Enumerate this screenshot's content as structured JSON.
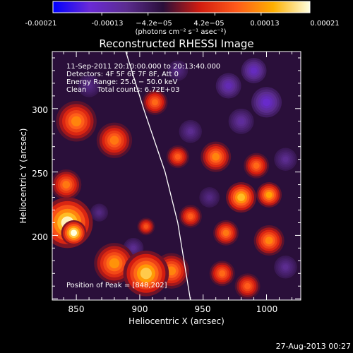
{
  "colors": {
    "background": "#000000",
    "foreground": "#ffffff",
    "limb": "#ffffff",
    "colormap": [
      "#0000ff",
      "#6a2ad6",
      "#5b2c8f",
      "#2a0f3a",
      "#d21c10",
      "#ff5a1a",
      "#ffb000",
      "#ffffe0"
    ]
  },
  "colorbar": {
    "ticks": [
      "-0.00021",
      "-0.00013",
      "−4.2e−05",
      "4.2e−05",
      "0.00013",
      "0.00021"
    ],
    "unit_label": "(photons cm⁻² s⁻¹ asec⁻²)"
  },
  "footer": {
    "timestamp": "27-Aug-2013 00:27"
  },
  "chart_data": {
    "type": "heatmap",
    "title": "Reconstructed RHESSI Image",
    "xlabel": "Heliocentric X (arcsec)",
    "ylabel": "Heliocentric Y (arcsec)",
    "xlim": [
      831,
      1027
    ],
    "ylim": [
      149,
      345
    ],
    "x_ticks": [
      850,
      900,
      950,
      1000
    ],
    "y_ticks": [
      200,
      250,
      300
    ],
    "x_tick_labels": [
      "850",
      "900",
      "950",
      "1000"
    ],
    "y_tick_labels": [
      "200",
      "250",
      "300"
    ],
    "colorbar_range": [
      -0.00021,
      0.00021
    ],
    "annotations": [
      "11-Sep-2011 20:10:00.000 to 20:13:40.000",
      "Detectors: 4F 5F 6F 7F 8F, Att 0",
      "Energy Range: 25.0 − 50.0 keV",
      "Clean     Total counts: 6.72E+03"
    ],
    "peak_label": "Position of Peak = [848,202]",
    "peak": [
      848,
      202
    ],
    "limb_line": [
      [
        889,
        345
      ],
      [
        903,
        300
      ],
      [
        920,
        250
      ],
      [
        930,
        210
      ],
      [
        940,
        149
      ]
    ],
    "blobs": [
      {
        "x": 843,
        "y": 210,
        "r": 20,
        "v": 0.0002
      },
      {
        "x": 848,
        "y": 202,
        "r": 10,
        "v": 0.00021
      },
      {
        "x": 905,
        "y": 170,
        "r": 18,
        "v": 0.00017
      },
      {
        "x": 880,
        "y": 178,
        "r": 16,
        "v": 0.00013
      },
      {
        "x": 925,
        "y": 172,
        "r": 14,
        "v": 0.00012
      },
      {
        "x": 850,
        "y": 290,
        "r": 16,
        "v": 0.00012
      },
      {
        "x": 842,
        "y": 240,
        "r": 12,
        "v": 0.00011
      },
      {
        "x": 880,
        "y": 275,
        "r": 14,
        "v": 0.00011
      },
      {
        "x": 912,
        "y": 305,
        "r": 10,
        "v": 0.0001
      },
      {
        "x": 930,
        "y": 262,
        "r": 9,
        "v": 9e-05
      },
      {
        "x": 960,
        "y": 262,
        "r": 12,
        "v": 0.00012
      },
      {
        "x": 992,
        "y": 255,
        "r": 10,
        "v": 0.0001
      },
      {
        "x": 980,
        "y": 230,
        "r": 12,
        "v": 0.00016
      },
      {
        "x": 1002,
        "y": 232,
        "r": 10,
        "v": 0.00014
      },
      {
        "x": 968,
        "y": 202,
        "r": 10,
        "v": 0.00011
      },
      {
        "x": 1002,
        "y": 196,
        "r": 12,
        "v": 0.00012
      },
      {
        "x": 940,
        "y": 215,
        "r": 9,
        "v": 9e-05
      },
      {
        "x": 965,
        "y": 170,
        "r": 10,
        "v": 0.0001
      },
      {
        "x": 985,
        "y": 160,
        "r": 10,
        "v": 9e-05
      },
      {
        "x": 905,
        "y": 207,
        "r": 7,
        "v": 8e-05
      },
      {
        "x": 1000,
        "y": 305,
        "r": 12,
        "v": -0.00014
      },
      {
        "x": 970,
        "y": 318,
        "r": 10,
        "v": -0.00012
      },
      {
        "x": 990,
        "y": 330,
        "r": 10,
        "v": -0.00013
      },
      {
        "x": 980,
        "y": 290,
        "r": 10,
        "v": -0.0001
      },
      {
        "x": 895,
        "y": 190,
        "r": 8,
        "v": -9e-05
      },
      {
        "x": 868,
        "y": 218,
        "r": 7,
        "v": -8e-05
      },
      {
        "x": 955,
        "y": 230,
        "r": 8,
        "v": -8e-05
      },
      {
        "x": 940,
        "y": 282,
        "r": 9,
        "v": -9e-05
      },
      {
        "x": 1015,
        "y": 260,
        "r": 9,
        "v": -9e-05
      },
      {
        "x": 860,
        "y": 318,
        "r": 9,
        "v": -8e-05
      },
      {
        "x": 930,
        "y": 330,
        "r": 8,
        "v": -8e-05
      },
      {
        "x": 1015,
        "y": 175,
        "r": 9,
        "v": -9e-05
      }
    ]
  }
}
